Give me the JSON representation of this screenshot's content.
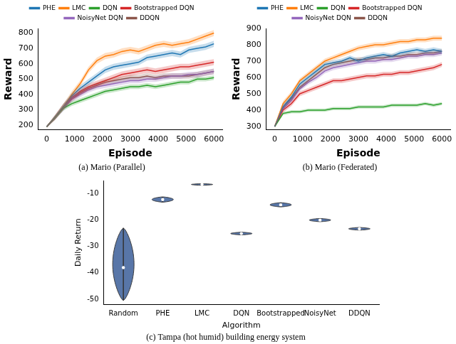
{
  "chart_data": [
    {
      "type": "line",
      "title": "(a) Mario (Parallel)",
      "x_label": "Episode",
      "y_label": "Reward",
      "x": [
        0,
        300,
        600,
        900,
        1200,
        1500,
        1800,
        2100,
        2400,
        2700,
        3000,
        3300,
        3600,
        3900,
        4200,
        4500,
        4800,
        5100,
        5400,
        5700,
        6000
      ],
      "xlim": [
        -300,
        6300
      ],
      "xticks": [
        0,
        1000,
        2000,
        3000,
        4000,
        5000,
        6000
      ],
      "ylim": [
        170,
        830
      ],
      "yticks": [
        200,
        300,
        400,
        500,
        600,
        700,
        800
      ],
      "grid": false,
      "legend": "top",
      "series": [
        {
          "name": "PHE",
          "color": "#1f77b4",
          "values": [
            190,
            250,
            320,
            390,
            440,
            480,
            520,
            560,
            580,
            590,
            600,
            610,
            640,
            650,
            660,
            670,
            660,
            690,
            700,
            710,
            730
          ],
          "errors": [
            5,
            15,
            20,
            20,
            20,
            20,
            20,
            20,
            20,
            20,
            20,
            20,
            20,
            20,
            20,
            20,
            20,
            20,
            20,
            20,
            20
          ]
        },
        {
          "name": "LMC",
          "color": "#ff7f0e",
          "values": [
            190,
            250,
            320,
            400,
            470,
            560,
            620,
            650,
            660,
            680,
            690,
            680,
            700,
            720,
            730,
            720,
            730,
            740,
            760,
            780,
            800
          ],
          "errors": [
            5,
            15,
            20,
            20,
            20,
            20,
            20,
            20,
            20,
            20,
            20,
            20,
            20,
            20,
            20,
            20,
            20,
            20,
            20,
            20,
            20
          ]
        },
        {
          "name": "DQN",
          "color": "#2ca02c",
          "values": [
            190,
            250,
            310,
            340,
            360,
            380,
            400,
            420,
            430,
            440,
            450,
            450,
            460,
            450,
            460,
            470,
            480,
            480,
            500,
            500,
            510
          ],
          "errors": [
            5,
            12,
            15,
            15,
            15,
            15,
            15,
            15,
            15,
            15,
            15,
            15,
            15,
            15,
            15,
            15,
            15,
            15,
            15,
            15,
            15
          ]
        },
        {
          "name": "Bootstrapped DQN",
          "color": "#d62728",
          "values": [
            190,
            250,
            320,
            380,
            420,
            450,
            470,
            490,
            510,
            530,
            540,
            550,
            560,
            550,
            560,
            570,
            580,
            580,
            590,
            600,
            610
          ],
          "errors": [
            5,
            15,
            20,
            20,
            20,
            20,
            20,
            20,
            20,
            20,
            20,
            20,
            20,
            20,
            20,
            20,
            20,
            20,
            20,
            20,
            20
          ]
        },
        {
          "name": "NoisyNet DQN",
          "color": "#9467bd",
          "values": [
            190,
            250,
            310,
            370,
            400,
            430,
            450,
            460,
            470,
            480,
            490,
            490,
            500,
            500,
            510,
            520,
            520,
            530,
            530,
            540,
            550
          ],
          "errors": [
            5,
            15,
            18,
            18,
            18,
            18,
            18,
            18,
            18,
            18,
            18,
            18,
            18,
            18,
            18,
            18,
            18,
            18,
            18,
            18,
            18
          ]
        },
        {
          "name": "DDQN",
          "color": "#8c564b",
          "values": [
            190,
            250,
            320,
            370,
            410,
            440,
            460,
            480,
            490,
            500,
            510,
            510,
            520,
            510,
            520,
            520,
            520,
            520,
            530,
            540,
            550
          ],
          "errors": [
            5,
            15,
            18,
            18,
            18,
            18,
            18,
            18,
            18,
            18,
            18,
            18,
            18,
            18,
            18,
            18,
            18,
            18,
            18,
            18,
            18
          ]
        }
      ]
    },
    {
      "type": "line",
      "title": "(b) Mario (Federated)",
      "x_label": "Episode",
      "y_label": "Reward",
      "x": [
        0,
        300,
        600,
        900,
        1200,
        1500,
        1800,
        2100,
        2400,
        2700,
        3000,
        3300,
        3600,
        3900,
        4200,
        4500,
        4800,
        5100,
        5400,
        5700,
        6000
      ],
      "xlim": [
        -300,
        6300
      ],
      "xticks": [
        0,
        1000,
        2000,
        3000,
        4000,
        5000,
        6000
      ],
      "ylim": [
        280,
        900
      ],
      "yticks": [
        300,
        400,
        500,
        600,
        700,
        800,
        900
      ],
      "grid": false,
      "legend": "top",
      "series": [
        {
          "name": "PHE",
          "color": "#1f77b4",
          "values": [
            300,
            420,
            480,
            560,
            600,
            640,
            680,
            690,
            700,
            720,
            700,
            720,
            730,
            740,
            730,
            750,
            760,
            770,
            760,
            770,
            760
          ],
          "errors": [
            5,
            15,
            15,
            15,
            15,
            15,
            15,
            15,
            15,
            15,
            15,
            15,
            15,
            15,
            15,
            15,
            15,
            15,
            15,
            15,
            15
          ]
        },
        {
          "name": "LMC",
          "color": "#ff7f0e",
          "values": [
            300,
            440,
            500,
            580,
            620,
            660,
            700,
            720,
            740,
            760,
            780,
            790,
            800,
            800,
            810,
            820,
            820,
            830,
            830,
            840,
            840
          ],
          "errors": [
            5,
            15,
            15,
            15,
            15,
            15,
            15,
            15,
            15,
            15,
            15,
            15,
            15,
            15,
            15,
            15,
            15,
            15,
            15,
            15,
            15
          ]
        },
        {
          "name": "DQN",
          "color": "#2ca02c",
          "values": [
            300,
            380,
            390,
            390,
            400,
            400,
            400,
            410,
            410,
            410,
            420,
            420,
            420,
            420,
            430,
            430,
            430,
            430,
            440,
            430,
            440
          ],
          "errors": [
            5,
            10,
            10,
            10,
            10,
            10,
            10,
            10,
            10,
            10,
            10,
            10,
            10,
            10,
            10,
            10,
            10,
            10,
            10,
            10,
            10
          ]
        },
        {
          "name": "Bootstrapped DQN",
          "color": "#d62728",
          "values": [
            300,
            400,
            440,
            500,
            520,
            540,
            560,
            580,
            580,
            590,
            600,
            610,
            610,
            620,
            620,
            630,
            630,
            640,
            650,
            660,
            680
          ],
          "errors": [
            5,
            15,
            15,
            15,
            15,
            15,
            15,
            15,
            15,
            15,
            15,
            15,
            15,
            15,
            15,
            15,
            15,
            15,
            15,
            15,
            15
          ]
        },
        {
          "name": "NoisyNet DQN",
          "color": "#9467bd",
          "values": [
            300,
            410,
            460,
            530,
            570,
            600,
            640,
            660,
            670,
            680,
            690,
            700,
            700,
            710,
            710,
            720,
            730,
            730,
            740,
            740,
            750
          ],
          "errors": [
            5,
            15,
            15,
            15,
            15,
            15,
            15,
            15,
            15,
            15,
            15,
            15,
            15,
            15,
            15,
            15,
            15,
            15,
            15,
            15,
            15
          ]
        },
        {
          "name": "DDQN",
          "color": "#8c564b",
          "values": [
            300,
            420,
            470,
            540,
            580,
            620,
            660,
            680,
            690,
            700,
            710,
            710,
            720,
            720,
            730,
            730,
            740,
            740,
            750,
            750,
            760
          ],
          "errors": [
            5,
            15,
            15,
            15,
            15,
            15,
            15,
            15,
            15,
            15,
            15,
            15,
            15,
            15,
            15,
            15,
            15,
            15,
            15,
            15,
            15
          ]
        }
      ]
    },
    {
      "type": "violin",
      "title": "(c) Tampa (hot humid) building energy system",
      "x_label": "Algorithm",
      "y_label": "Daily Return",
      "categories": [
        "Random",
        "PHE",
        "LMC",
        "DQN",
        "Bootstrapped",
        "NoisyNet",
        "DDQN"
      ],
      "values": [
        -38,
        -12.2,
        -6.5,
        -25.1,
        -14.2,
        -20,
        -23.3
      ],
      "min": [
        -50.5,
        -13.2,
        -6.8,
        -25.6,
        -15,
        -20.6,
        -23.8
      ],
      "max": [
        -23,
        -11.2,
        -6.2,
        -24.6,
        -13.4,
        -19.4,
        -22.8
      ],
      "color": "#5876a8",
      "ylim": [
        -52,
        -5
      ],
      "yticks": [
        -50,
        -40,
        -30,
        -20,
        -10
      ],
      "grid": false
    }
  ]
}
